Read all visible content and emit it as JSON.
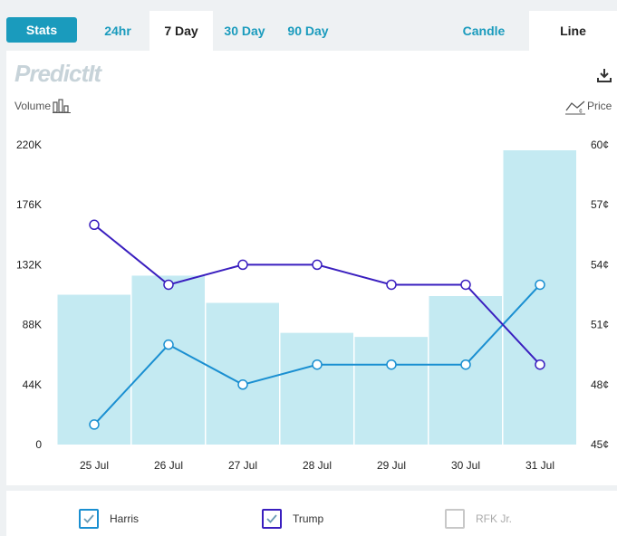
{
  "tabs": {
    "stats": "Stats",
    "h24": "24hr",
    "d7": "7 Day",
    "d30": "30 Day",
    "d90": "90 Day",
    "candle": "Candle",
    "line": "Line"
  },
  "logo_text": "PredictIt",
  "volume_label": "Volume",
  "price_label": "Price",
  "colors": {
    "accent": "#1a9bbd",
    "harris": "#1a8fd1",
    "trump": "#3a1fbf",
    "rfk": "#c8c8c8",
    "volume_bar": "#c4eaf2"
  },
  "chart_data": {
    "type": "bar+line",
    "categories": [
      "25 Jul",
      "26 Jul",
      "27 Jul",
      "28 Jul",
      "29 Jul",
      "30 Jul",
      "31 Jul"
    ],
    "volume": {
      "axis": "left",
      "ylim": [
        0,
        220000
      ],
      "ticks": [
        "0",
        "44K",
        "88K",
        "132K",
        "176K",
        "220K"
      ],
      "values": [
        110000,
        124000,
        104000,
        82000,
        79000,
        109000,
        216000
      ]
    },
    "price_axis": {
      "axis": "right",
      "ylim": [
        45,
        60
      ],
      "ticks": [
        "45¢",
        "48¢",
        "51¢",
        "54¢",
        "57¢",
        "60¢"
      ]
    },
    "series": [
      {
        "name": "Harris",
        "color": "#1a8fd1",
        "values": [
          46,
          50,
          48,
          49,
          49,
          49,
          53
        ]
      },
      {
        "name": "Trump",
        "color": "#3a1fbf",
        "values": [
          56,
          53,
          54,
          54,
          53,
          53,
          49
        ]
      }
    ]
  },
  "legend": [
    {
      "label": "Harris",
      "checked": true,
      "color": "#1a8fd1"
    },
    {
      "label": "Trump",
      "checked": true,
      "color": "#3a1fbf"
    },
    {
      "label": "RFK Jr.",
      "checked": false,
      "color": "#c8c8c8"
    }
  ]
}
